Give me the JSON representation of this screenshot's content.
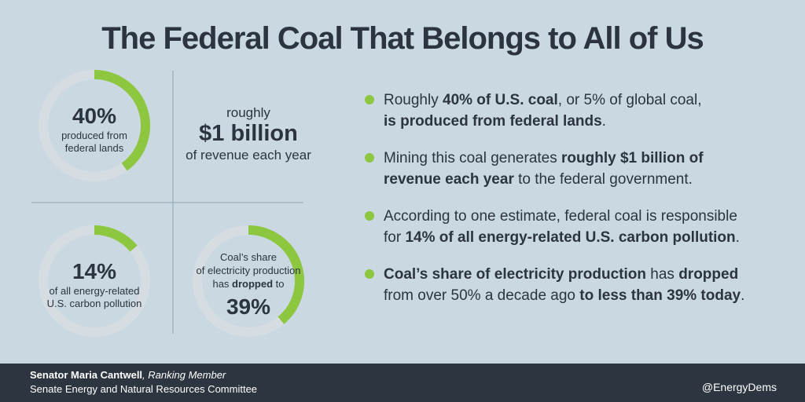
{
  "title": "The Federal Coal That Belongs to All of Us",
  "stats": [
    {
      "value": 40,
      "label": "40%",
      "caption": [
        [
          {
            "text": "produced from",
            "bold": false
          }
        ],
        [
          {
            "text": "federal lands",
            "bold": false
          }
        ]
      ]
    },
    {
      "value": 14,
      "label": "14%",
      "caption": [
        [
          {
            "text": "of all energy-related",
            "bold": false
          }
        ],
        [
          {
            "text": "U.S. carbon pollution",
            "bold": false
          }
        ]
      ]
    },
    {
      "value": 39,
      "label": "39%",
      "caption": [
        [
          {
            "text": "Coal’s share",
            "bold": false
          }
        ],
        [
          {
            "text": "of electricity production",
            "bold": false
          }
        ],
        [
          {
            "text": "has ",
            "bold": false
          },
          {
            "text": "dropped",
            "bold": true
          },
          {
            "text": " to",
            "bold": false
          }
        ]
      ]
    }
  ],
  "revenue": {
    "lead": "roughly",
    "amount": "$1 billion",
    "tail": "of revenue each year"
  },
  "bullets": [
    [
      [
        {
          "text": "Roughly ",
          "bold": false
        },
        {
          "text": "40% of U.S. coal",
          "bold": true
        },
        {
          "text": ", or 5% of global coal,",
          "bold": false
        }
      ],
      [
        {
          "text": "is produced from federal lands",
          "bold": true
        },
        {
          "text": ".",
          "bold": false
        }
      ]
    ],
    [
      [
        {
          "text": "Mining this coal generates ",
          "bold": false
        },
        {
          "text": "roughly $1 billion of",
          "bold": true
        }
      ],
      [
        {
          "text": "revenue each year",
          "bold": true
        },
        {
          "text": " to the federal government.",
          "bold": false
        }
      ]
    ],
    [
      [
        {
          "text": "According to one estimate, federal coal is responsible",
          "bold": false
        }
      ],
      [
        {
          "text": "for ",
          "bold": false
        },
        {
          "text": "14% of all energy-related U.S. carbon pollution",
          "bold": true
        },
        {
          "text": ".",
          "bold": false
        }
      ]
    ],
    [
      [
        {
          "text": "Coal’s share of electricity production",
          "bold": true
        },
        {
          "text": " has ",
          "bold": false
        },
        {
          "text": "dropped",
          "bold": true
        }
      ],
      [
        {
          "text": "from over 50% a decade ago ",
          "bold": false
        },
        {
          "text": "to less than 39% today",
          "bold": true
        },
        {
          "text": ".",
          "bold": false
        }
      ]
    ]
  ],
  "footer": {
    "name": "Senator Maria Cantwell",
    "role": ", Ranking Member",
    "committee": "Senate Energy and Natural Resources Committee",
    "handle": "@EnergyDems"
  }
}
